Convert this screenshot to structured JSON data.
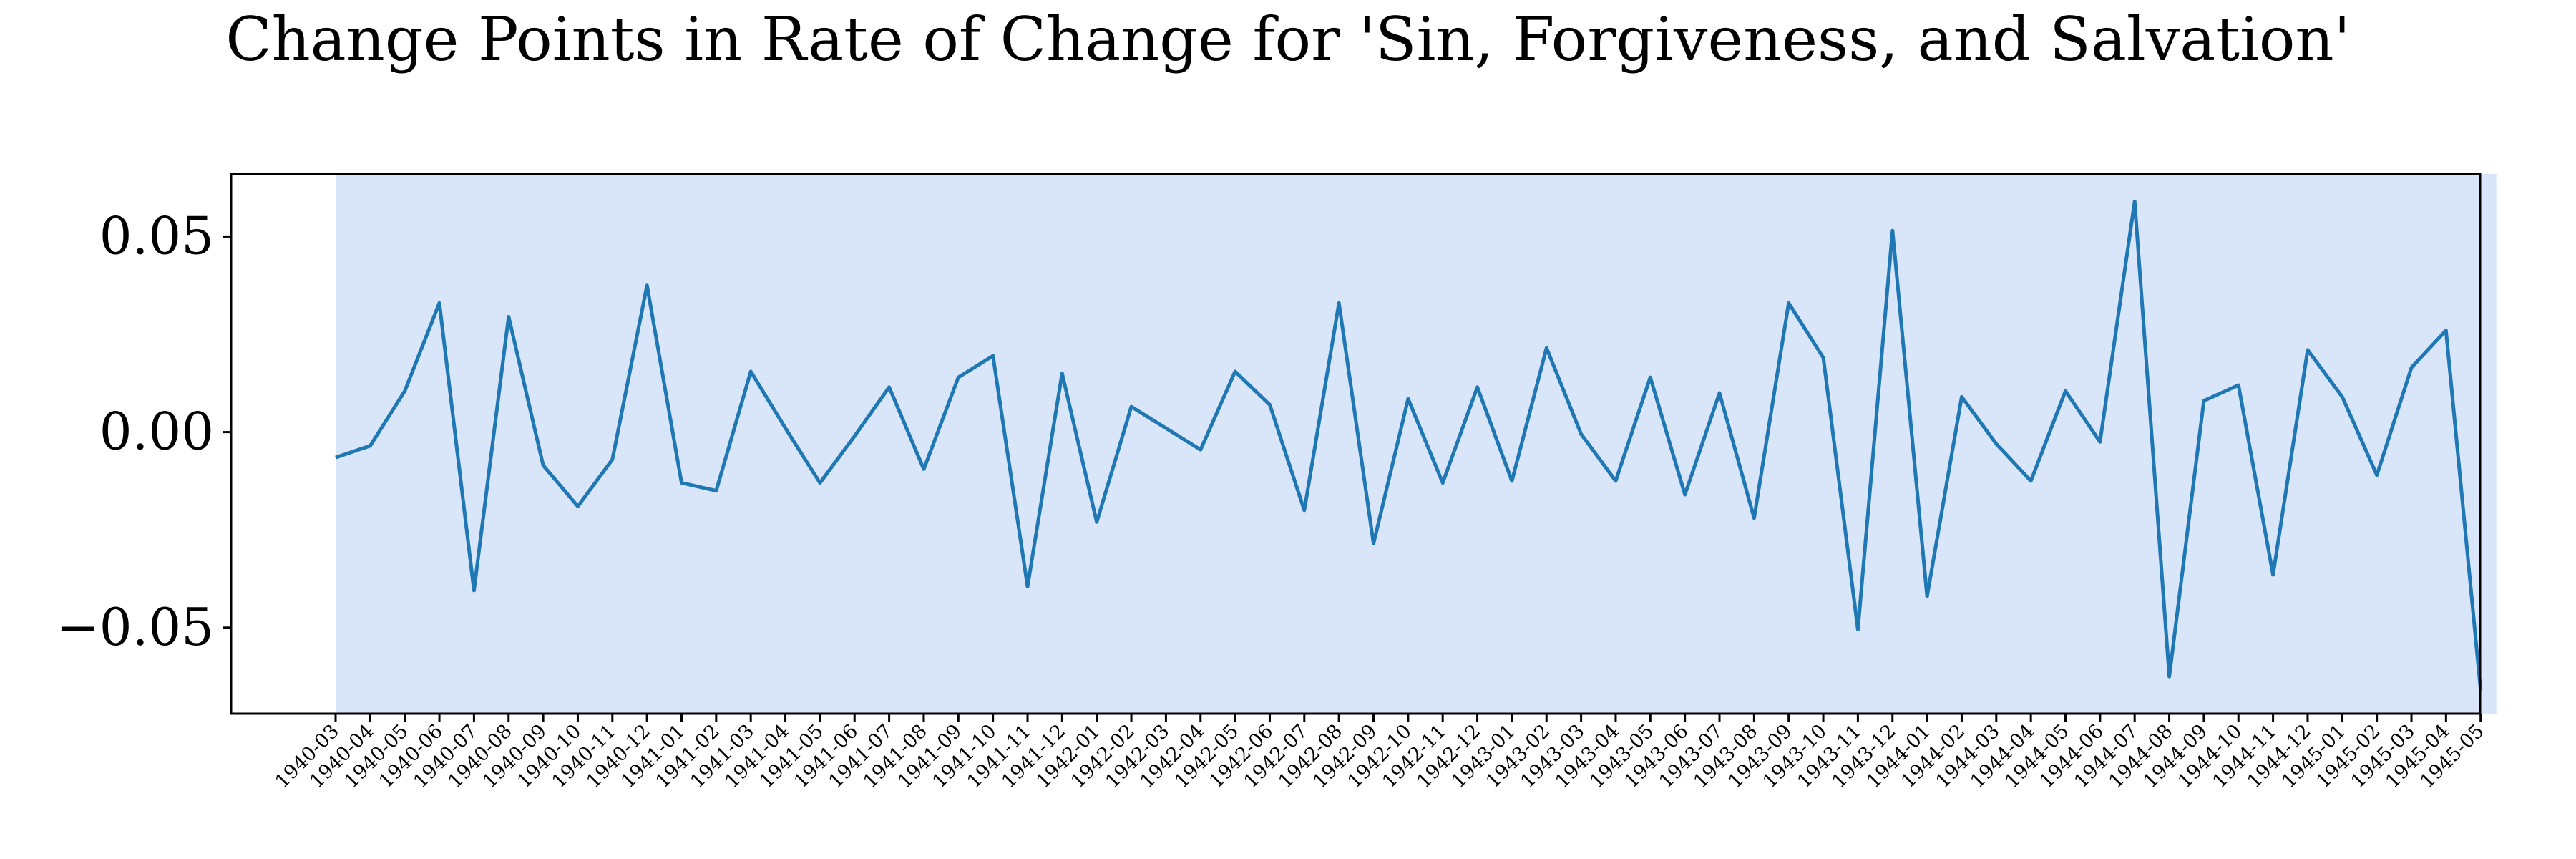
{
  "chart_data": {
    "type": "line",
    "title": "Change Points in Rate of Change for 'Sin, Forgiveness, and Salvation'",
    "xlabel": "",
    "ylabel": "",
    "ylim": [
      -0.072,
      0.066
    ],
    "yticks": [
      0.05,
      0.0,
      -0.05
    ],
    "ytick_labels": [
      "0.05",
      "0.00",
      "−0.05"
    ],
    "grid": false,
    "colors": {
      "line": "#1f77b4",
      "segment_fill": "#d9e6fa",
      "axes": "#000000"
    },
    "shaded_segments": [
      {
        "start": "1940-03",
        "end": "1945-05"
      }
    ],
    "categories": [
      "1940-03",
      "1940-04",
      "1940-05",
      "1940-06",
      "1940-07",
      "1940-08",
      "1940-09",
      "1940-10",
      "1940-11",
      "1940-12",
      "1941-01",
      "1941-02",
      "1941-03",
      "1941-04",
      "1941-05",
      "1941-06",
      "1941-07",
      "1941-08",
      "1941-09",
      "1941-10",
      "1941-11",
      "1941-12",
      "1942-01",
      "1942-02",
      "1942-03",
      "1942-04",
      "1942-05",
      "1942-06",
      "1942-07",
      "1942-08",
      "1942-09",
      "1942-10",
      "1942-11",
      "1942-12",
      "1943-01",
      "1943-02",
      "1943-03",
      "1943-04",
      "1943-05",
      "1943-06",
      "1943-07",
      "1943-08",
      "1943-09",
      "1943-10",
      "1943-11",
      "1943-12",
      "1944-01",
      "1944-02",
      "1944-03",
      "1944-04",
      "1944-05",
      "1944-06",
      "1944-07",
      "1944-08",
      "1944-09",
      "1944-10",
      "1944-11",
      "1944-12",
      "1945-01",
      "1945-02",
      "1945-03",
      "1945-04",
      "1945-05"
    ],
    "series": [
      {
        "values": [
          -0.0065,
          -0.0035,
          0.0105,
          0.033,
          -0.0405,
          0.0295,
          -0.0085,
          -0.019,
          -0.007,
          0.0375,
          -0.013,
          -0.015,
          0.0155,
          0.001,
          -0.013,
          -0.001,
          0.0115,
          -0.0095,
          0.014,
          0.0195,
          -0.0395,
          0.015,
          -0.023,
          0.0065,
          0.001,
          -0.0045,
          0.0155,
          0.007,
          -0.02,
          0.033,
          -0.0285,
          0.0085,
          -0.013,
          0.0115,
          -0.0125,
          0.0215,
          -0.0005,
          -0.0125,
          0.014,
          -0.016,
          0.01,
          -0.022,
          0.033,
          0.019,
          -0.0505,
          0.0515,
          -0.042,
          0.009,
          -0.003,
          -0.0125,
          0.0105,
          -0.0025,
          0.059,
          -0.0625,
          0.008,
          0.012,
          -0.0365,
          0.021,
          0.009,
          -0.011,
          0.0165,
          0.026,
          -0.066
        ]
      }
    ]
  }
}
